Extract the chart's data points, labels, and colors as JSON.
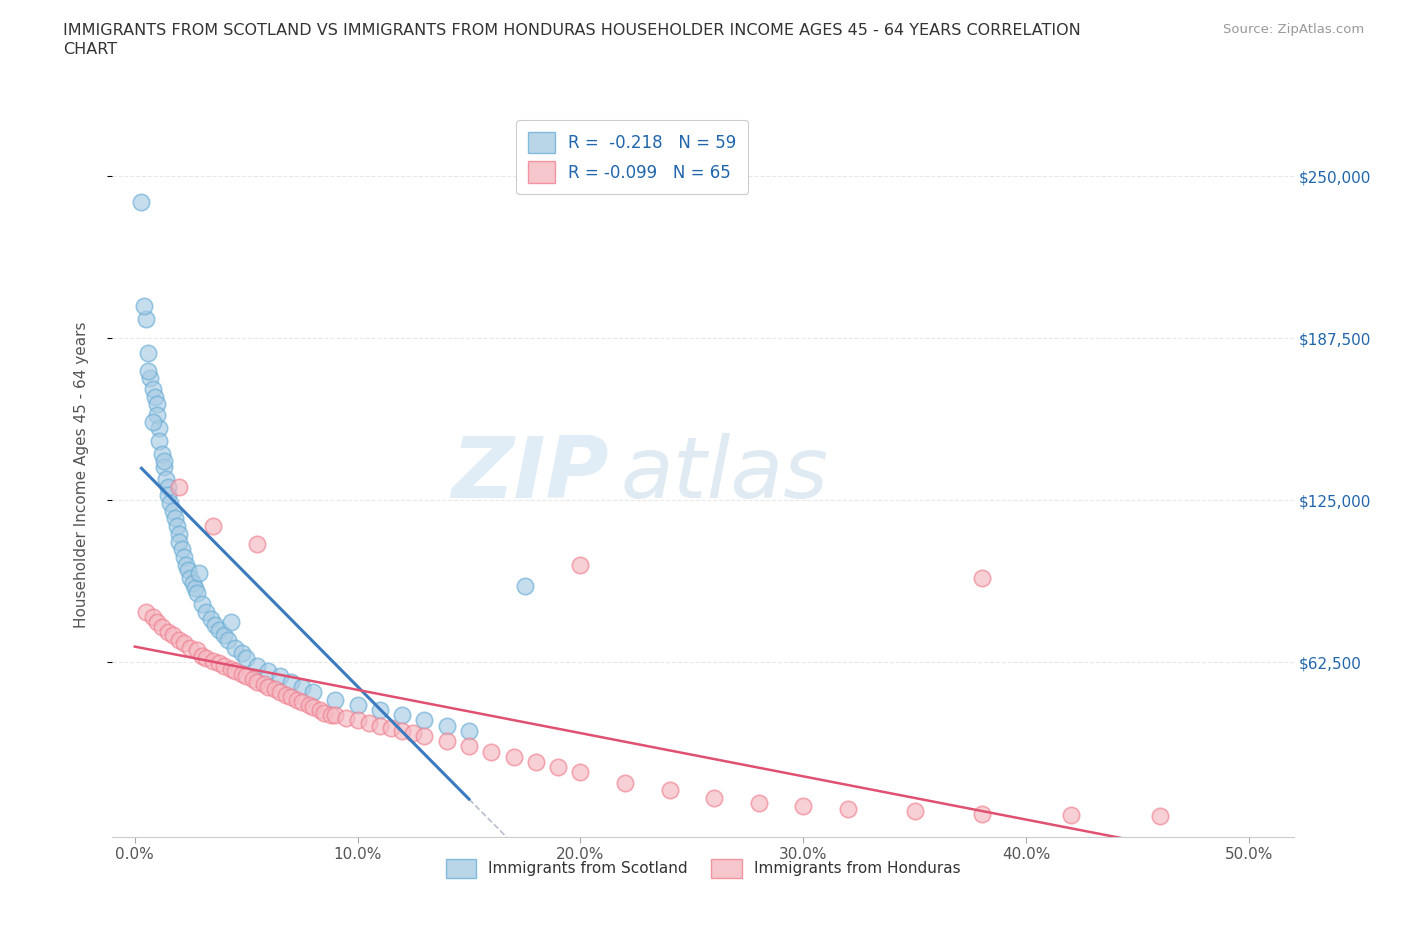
{
  "title": "IMMIGRANTS FROM SCOTLAND VS IMMIGRANTS FROM HONDURAS HOUSEHOLDER INCOME AGES 45 - 64 YEARS CORRELATION\nCHART",
  "source": "Source: ZipAtlas.com",
  "ylabel_label": "Householder Income Ages 45 - 64 years",
  "x_tick_labels": [
    "0.0%",
    "10.0%",
    "20.0%",
    "30.0%",
    "40.0%",
    "50.0%"
  ],
  "x_tick_positions": [
    0,
    10,
    20,
    30,
    40,
    50
  ],
  "y_tick_labels": [
    "$62,500",
    "$125,000",
    "$187,500",
    "$250,000"
  ],
  "y_tick_values": [
    62500,
    125000,
    187500,
    250000
  ],
  "xlim": [
    -1,
    52
  ],
  "ylim": [
    -5000,
    275000
  ],
  "scotland_color": "#a8cce4",
  "scotland_edge": "#6baed6",
  "honduras_color": "#f4b8c1",
  "honduras_edge": "#f08090",
  "trendline_scotland_color": "#3a7abf",
  "trendline_honduras_color": "#e05070",
  "trendline_dashed_color": "#b0b8c8",
  "legend_R_scotland": "R =  -0.218   N = 59",
  "legend_R_honduras": "R = -0.099   N = 65",
  "scotland_x": [
    0.3,
    0.5,
    0.6,
    0.7,
    0.8,
    0.9,
    1.0,
    1.0,
    1.1,
    1.1,
    1.2,
    1.3,
    1.4,
    1.5,
    1.5,
    1.6,
    1.7,
    1.8,
    1.9,
    2.0,
    2.0,
    2.1,
    2.2,
    2.3,
    2.4,
    2.5,
    2.6,
    2.7,
    2.8,
    3.0,
    3.2,
    3.4,
    3.6,
    3.8,
    4.0,
    4.2,
    4.5,
    4.8,
    5.0,
    5.5,
    6.0,
    6.5,
    7.0,
    7.5,
    8.0,
    9.0,
    10.0,
    11.0,
    12.0,
    13.0,
    14.0,
    15.0,
    0.4,
    0.6,
    0.8,
    1.3,
    2.9,
    4.3,
    17.5
  ],
  "scotland_y": [
    240000,
    195000,
    182000,
    172000,
    168000,
    165000,
    162000,
    158000,
    153000,
    148000,
    143000,
    138000,
    133000,
    130000,
    127000,
    124000,
    121000,
    118000,
    115000,
    112000,
    109000,
    106000,
    103000,
    100000,
    98000,
    95000,
    93000,
    91000,
    89000,
    85000,
    82000,
    79000,
    77000,
    75000,
    73000,
    71000,
    68000,
    66000,
    64000,
    61000,
    59000,
    57000,
    55000,
    53000,
    51000,
    48000,
    46000,
    44000,
    42000,
    40000,
    38000,
    36000,
    200000,
    175000,
    155000,
    140000,
    97000,
    78000,
    92000
  ],
  "honduras_x": [
    0.5,
    0.8,
    1.0,
    1.2,
    1.5,
    1.7,
    2.0,
    2.2,
    2.5,
    2.8,
    3.0,
    3.2,
    3.5,
    3.8,
    4.0,
    4.3,
    4.5,
    4.8,
    5.0,
    5.3,
    5.5,
    5.8,
    6.0,
    6.3,
    6.5,
    6.8,
    7.0,
    7.3,
    7.5,
    7.8,
    8.0,
    8.3,
    8.5,
    8.8,
    9.0,
    9.5,
    10.0,
    10.5,
    11.0,
    11.5,
    12.0,
    12.5,
    13.0,
    14.0,
    15.0,
    16.0,
    17.0,
    18.0,
    19.0,
    20.0,
    22.0,
    24.0,
    26.0,
    28.0,
    30.0,
    32.0,
    35.0,
    38.0,
    42.0,
    46.0,
    2.0,
    3.5,
    5.5,
    20.0,
    38.0
  ],
  "honduras_y": [
    82000,
    80000,
    78000,
    76000,
    74000,
    73000,
    71000,
    70000,
    68000,
    67000,
    65000,
    64000,
    63000,
    62000,
    61000,
    60000,
    59000,
    58000,
    57000,
    56000,
    55000,
    54000,
    53000,
    52000,
    51000,
    50000,
    49000,
    48000,
    47000,
    46000,
    45000,
    44000,
    43000,
    42000,
    42000,
    41000,
    40000,
    39000,
    38000,
    37000,
    36000,
    35000,
    34000,
    32000,
    30000,
    28000,
    26000,
    24000,
    22000,
    20000,
    16000,
    13000,
    10000,
    8000,
    7000,
    6000,
    5000,
    4000,
    3500,
    3000,
    130000,
    115000,
    108000,
    100000,
    95000
  ],
  "watermark_zip": "ZIP",
  "watermark_atlas": "atlas",
  "background_color": "#ffffff",
  "grid_color": "#e8e8e8"
}
